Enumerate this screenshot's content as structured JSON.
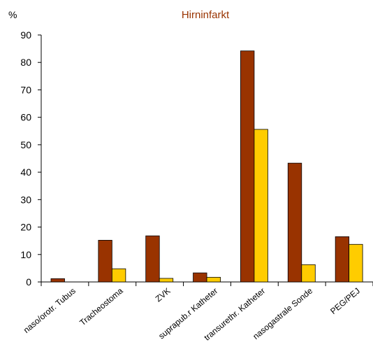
{
  "chart_data": {
    "type": "bar",
    "title": "Hirninfarkt",
    "ylabel": "%",
    "xlabel": "",
    "ylim": [
      0,
      90
    ],
    "yticks": [
      "0",
      "10",
      "20",
      "30",
      "40",
      "50",
      "60",
      "70",
      "80",
      "90"
    ],
    "categories": [
      "naso/orotr. Tubus",
      "Tracheostoma",
      "ZVK",
      "suprapub.r Katheter",
      "transurethr. Katheter",
      "nasogastrale Sonde",
      "PEG/PEJ"
    ],
    "series": [
      {
        "values": [
          1.2,
          15.2,
          16.8,
          3.3,
          84.2,
          43.3,
          16.5
        ],
        "color": "#993300"
      },
      {
        "values": [
          0,
          4.8,
          1.3,
          1.7,
          55.6,
          6.3,
          13.7
        ],
        "color": "#ffcc00"
      }
    ],
    "grid": false,
    "legend": "none",
    "colors": {
      "title": "#993300",
      "axis": "#000000",
      "bar_edge": "#000000"
    }
  }
}
